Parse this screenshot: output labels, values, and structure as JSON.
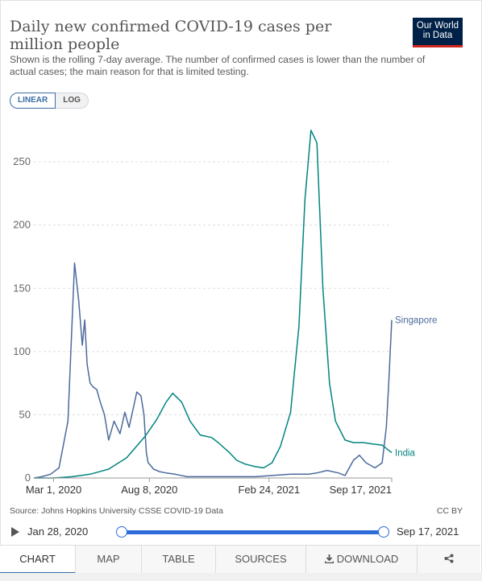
{
  "header": {
    "title": "Daily new confirmed COVID-19 cases per million people",
    "subtitle": "Shown is the rolling 7-day average. The number of confirmed cases is lower than the number of actual cases; the main reason for that is limited testing.",
    "logo_line1": "Our World",
    "logo_line2": "in Data"
  },
  "scale_toggle": {
    "linear": "LINEAR",
    "log": "LOG",
    "active": "linear"
  },
  "colors": {
    "india": "#00847e",
    "singapore": "#4c6a9c",
    "accent": "#3b6da6",
    "logo_bg": "#002147",
    "logo_bar": "#ce261e"
  },
  "chart_data": {
    "type": "line",
    "title": "Daily new confirmed COVID-19 cases per million people",
    "ylim": [
      0,
      280
    ],
    "y_ticks": [
      0,
      50,
      100,
      150,
      200,
      250
    ],
    "x_range": [
      "2020-01-28",
      "2021-09-17"
    ],
    "x_ticks": [
      {
        "date": "2020-03-01",
        "label": "Mar 1, 2020"
      },
      {
        "date": "2020-08-08",
        "label": "Aug 8, 2020"
      },
      {
        "date": "2021-02-24",
        "label": "Feb 24, 2021"
      },
      {
        "date": "2021-09-17",
        "label": "Sep 17, 2021"
      }
    ],
    "grid": true,
    "legend": "inline-right",
    "series": [
      {
        "name": "Singapore",
        "x": [
          "2020-01-28",
          "2020-02-10",
          "2020-02-25",
          "2020-03-10",
          "2020-03-25",
          "2020-04-05",
          "2020-04-12",
          "2020-04-18",
          "2020-04-22",
          "2020-04-26",
          "2020-05-01",
          "2020-05-06",
          "2020-05-12",
          "2020-05-18",
          "2020-05-25",
          "2020-06-01",
          "2020-06-10",
          "2020-06-20",
          "2020-06-28",
          "2020-07-05",
          "2020-07-12",
          "2020-07-18",
          "2020-07-25",
          "2020-07-30",
          "2020-08-03",
          "2020-08-06",
          "2020-08-10",
          "2020-08-15",
          "2020-08-25",
          "2020-09-05",
          "2020-09-20",
          "2020-10-10",
          "2020-11-01",
          "2020-12-01",
          "2021-01-01",
          "2021-02-01",
          "2021-03-01",
          "2021-04-01",
          "2021-05-01",
          "2021-05-15",
          "2021-06-01",
          "2021-06-20",
          "2021-07-01",
          "2021-07-15",
          "2021-07-25",
          "2021-08-05",
          "2021-08-20",
          "2021-09-01",
          "2021-09-08",
          "2021-09-12",
          "2021-09-17"
        ],
        "values": [
          0,
          1,
          3,
          8,
          45,
          170,
          140,
          105,
          125,
          90,
          75,
          72,
          70,
          60,
          50,
          30,
          45,
          35,
          52,
          40,
          55,
          68,
          65,
          50,
          20,
          12,
          10,
          7,
          5,
          4,
          3,
          1,
          1,
          1,
          1,
          1,
          2,
          3,
          3,
          4,
          6,
          4,
          2,
          14,
          18,
          12,
          8,
          12,
          40,
          75,
          125
        ]
      },
      {
        "name": "India",
        "x": [
          "2020-01-28",
          "2020-03-01",
          "2020-04-01",
          "2020-05-01",
          "2020-06-01",
          "2020-07-01",
          "2020-08-01",
          "2020-08-20",
          "2020-09-05",
          "2020-09-16",
          "2020-10-01",
          "2020-10-15",
          "2020-11-01",
          "2020-11-20",
          "2020-12-01",
          "2020-12-20",
          "2021-01-01",
          "2021-01-15",
          "2021-02-01",
          "2021-02-15",
          "2021-03-01",
          "2021-03-15",
          "2021-04-01",
          "2021-04-15",
          "2021-04-25",
          "2021-05-05",
          "2021-05-15",
          "2021-05-25",
          "2021-06-05",
          "2021-06-15",
          "2021-07-01",
          "2021-07-15",
          "2021-08-01",
          "2021-08-15",
          "2021-09-01",
          "2021-09-17"
        ],
        "values": [
          0,
          0,
          1,
          3,
          7,
          16,
          33,
          46,
          60,
          67,
          60,
          45,
          34,
          32,
          28,
          20,
          14,
          11,
          9,
          8,
          12,
          25,
          52,
          120,
          220,
          275,
          265,
          150,
          75,
          45,
          30,
          28,
          28,
          27,
          26,
          20
        ]
      }
    ]
  },
  "footer": {
    "source": "Source: Johns Hopkins University CSSE COVID-19 Data",
    "license": "CC BY"
  },
  "timeline": {
    "start": "Jan 28, 2020",
    "end": "Sep 17, 2021"
  },
  "tabs": [
    {
      "label": "CHART",
      "name": "tab-chart",
      "active": true
    },
    {
      "label": "MAP",
      "name": "tab-map"
    },
    {
      "label": "TABLE",
      "name": "tab-table"
    },
    {
      "label": "SOURCES",
      "name": "tab-sources"
    },
    {
      "label": "DOWNLOAD",
      "name": "tab-download",
      "icon": "download-icon"
    },
    {
      "label": "",
      "name": "tab-share",
      "icon": "share-icon"
    }
  ]
}
